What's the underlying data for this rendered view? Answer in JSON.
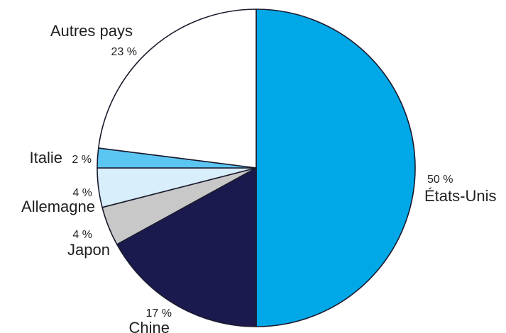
{
  "chart_data": {
    "type": "pie",
    "title": "",
    "unit": "%",
    "slices": [
      {
        "name": "États-Unis",
        "value": 50,
        "label": "50 %",
        "color": "#00a8e8"
      },
      {
        "name": "Chine",
        "value": 17,
        "label": "17 %",
        "color": "#1a1a4f"
      },
      {
        "name": "Japon",
        "value": 4,
        "label": "4 %",
        "color": "#c8c8c8"
      },
      {
        "name": "Allemagne",
        "value": 4,
        "label": "4 %",
        "color": "#d8eefa"
      },
      {
        "name": "Italie",
        "value": 2,
        "label": "2 %",
        "color": "#5cc6f3"
      },
      {
        "name": "Autres pays",
        "value": 23,
        "label": "23 %",
        "color": "#ffffff"
      }
    ],
    "start_position": "top",
    "direction": "clockwise",
    "legend": "none",
    "labels_outside": true
  }
}
